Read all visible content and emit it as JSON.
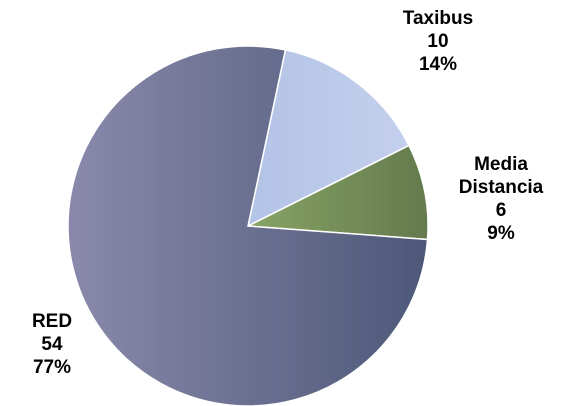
{
  "chart_data": {
    "type": "pie",
    "title": "",
    "slices": [
      {
        "name": "Taxibus",
        "value": 10,
        "percent": "14%"
      },
      {
        "name": "Media Distancia",
        "value": 6,
        "percent": "9%"
      },
      {
        "name": "RED",
        "value": 54,
        "percent": "77%"
      }
    ],
    "colors": {
      "Taxibus": "#b8c7e8",
      "Media Distancia": "#6e8a55",
      "RED": "#6b6f95"
    },
    "legend": "none",
    "start_angle_deg": 12,
    "direction": "clockwise"
  },
  "labels": {
    "taxibus": {
      "name": "Taxibus",
      "value": "10",
      "percent": "14%"
    },
    "media": {
      "name_line1": "Media",
      "name_line2": "Distancia",
      "value": "6",
      "percent": "9%"
    },
    "red": {
      "name": "RED",
      "value": "54",
      "percent": "77%"
    }
  }
}
